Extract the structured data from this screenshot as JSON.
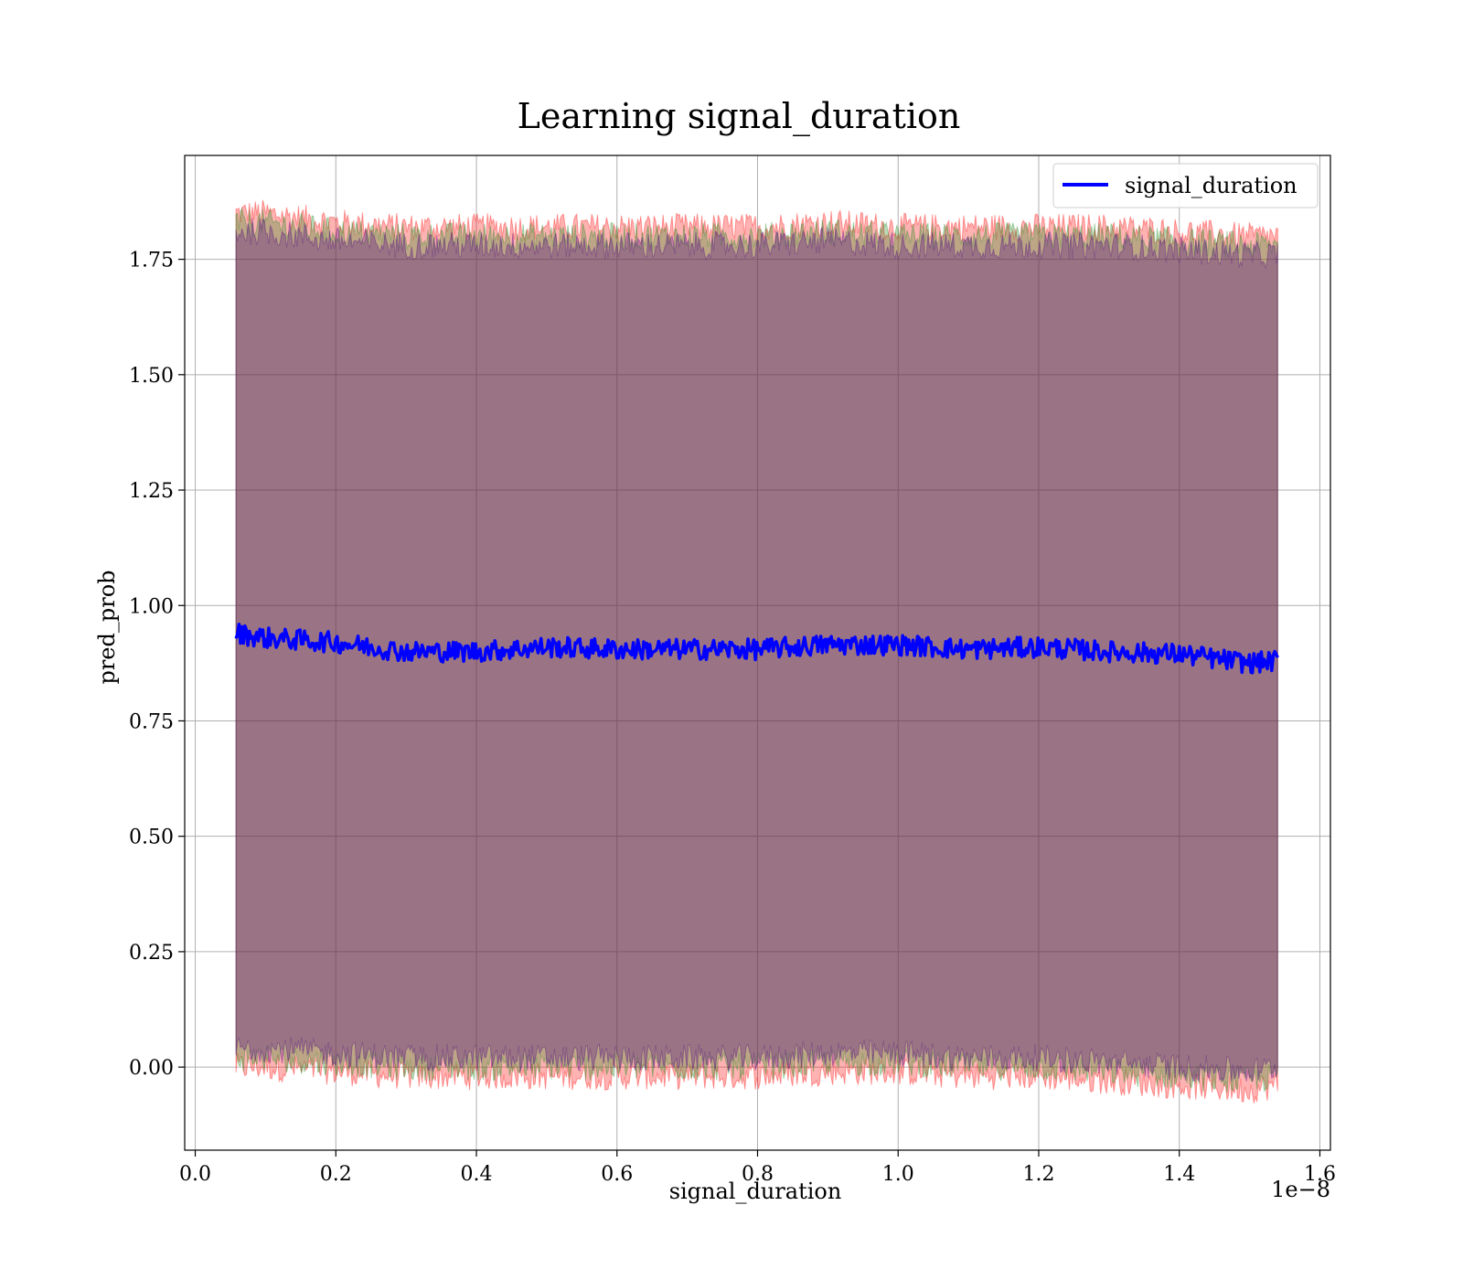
{
  "chart_data": {
    "type": "line",
    "title": "Learning signal_duration",
    "xlabel": "signal_duration",
    "ylabel": "pred_prob",
    "x_offset_label": "1e−8",
    "xlim": [
      -0.015,
      1.615
    ],
    "ylim": [
      -0.18,
      1.975
    ],
    "x_ticks": [
      0.0,
      0.2,
      0.4,
      0.6,
      0.8,
      1.0,
      1.2,
      1.4,
      1.6
    ],
    "x_tick_labels": [
      "0.0",
      "0.2",
      "0.4",
      "0.6",
      "0.8",
      "1.0",
      "1.2",
      "1.4",
      "1.6"
    ],
    "y_ticks": [
      0.0,
      0.25,
      0.5,
      0.75,
      1.0,
      1.25,
      1.5,
      1.75
    ],
    "y_tick_labels": [
      "0.00",
      "0.25",
      "0.50",
      "0.75",
      "1.00",
      "1.25",
      "1.50",
      "1.75"
    ],
    "grid": true,
    "legend": {
      "position": "top-right",
      "entries": [
        "signal_duration"
      ]
    },
    "series": [
      {
        "name": "signal_duration",
        "color": "#0000ff",
        "x": [
          0.058,
          0.1,
          0.2,
          0.3,
          0.4,
          0.5,
          0.6,
          0.7,
          0.8,
          0.9,
          1.0,
          1.1,
          1.2,
          1.3,
          1.4,
          1.5,
          1.54
        ],
        "y": [
          0.94,
          0.93,
          0.92,
          0.9,
          0.9,
          0.91,
          0.905,
          0.905,
          0.905,
          0.915,
          0.915,
          0.905,
          0.91,
          0.9,
          0.895,
          0.875,
          0.88
        ]
      }
    ],
    "bands": [
      {
        "color": "#ff0000",
        "x": [
          0.058,
          0.1,
          0.2,
          0.3,
          0.4,
          0.5,
          0.6,
          0.7,
          0.8,
          0.9,
          1.0,
          1.1,
          1.2,
          1.3,
          1.4,
          1.5,
          1.54
        ],
        "upper": [
          1.85,
          1.85,
          1.83,
          1.82,
          1.82,
          1.82,
          1.82,
          1.82,
          1.82,
          1.83,
          1.82,
          1.82,
          1.82,
          1.82,
          1.81,
          1.8,
          1.8
        ],
        "lower": [
          0.0,
          0.0,
          -0.01,
          -0.02,
          -0.02,
          -0.02,
          -0.02,
          -0.02,
          -0.02,
          -0.01,
          -0.01,
          -0.02,
          -0.02,
          -0.03,
          -0.04,
          -0.05,
          -0.04
        ]
      },
      {
        "color": "#228b22",
        "x": [
          0.058,
          0.1,
          0.2,
          0.3,
          0.4,
          0.5,
          0.6,
          0.7,
          0.8,
          0.9,
          1.0,
          1.1,
          1.2,
          1.3,
          1.4,
          1.5,
          1.54
        ],
        "upper": [
          1.83,
          1.83,
          1.81,
          1.8,
          1.8,
          1.8,
          1.8,
          1.8,
          1.8,
          1.81,
          1.8,
          1.8,
          1.8,
          1.8,
          1.79,
          1.78,
          1.78
        ],
        "lower": [
          0.02,
          0.02,
          0.01,
          0.0,
          0.0,
          0.0,
          0.0,
          0.0,
          0.0,
          0.01,
          0.01,
          0.0,
          0.0,
          -0.01,
          -0.02,
          -0.03,
          -0.02
        ]
      },
      {
        "color": "#4b0082",
        "x": [
          0.058,
          0.1,
          0.2,
          0.3,
          0.4,
          0.5,
          0.6,
          0.7,
          0.8,
          0.9,
          1.0,
          1.1,
          1.2,
          1.3,
          1.4,
          1.5,
          1.54
        ],
        "upper": [
          1.81,
          1.81,
          1.79,
          1.78,
          1.78,
          1.78,
          1.78,
          1.78,
          1.78,
          1.79,
          1.78,
          1.78,
          1.78,
          1.78,
          1.77,
          1.76,
          1.76
        ],
        "lower": [
          0.04,
          0.04,
          0.03,
          0.02,
          0.02,
          0.02,
          0.02,
          0.02,
          0.02,
          0.03,
          0.03,
          0.02,
          0.02,
          0.01,
          0.0,
          -0.01,
          0.0
        ]
      }
    ]
  }
}
